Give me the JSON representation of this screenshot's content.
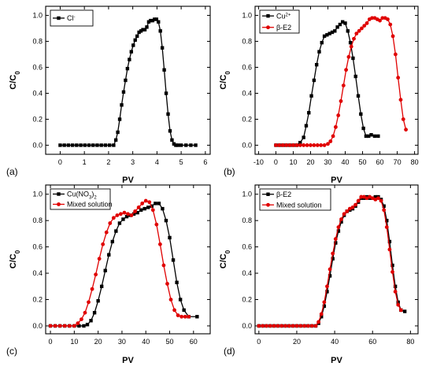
{
  "chart_data": [
    {
      "type": "line",
      "panel_label": "(a)",
      "xlabel": "PV",
      "ylabel": "C/C",
      "ylabel_sub": "0",
      "xlim": [
        -0.6,
        6.2
      ],
      "ylim": [
        -0.07,
        1.07
      ],
      "xticks": [
        0,
        1,
        2,
        3,
        4,
        5,
        6
      ],
      "yticks": [
        0.0,
        0.2,
        0.4,
        0.6,
        0.8,
        1.0
      ],
      "ytick_labels": [
        "0.0",
        "0.2",
        "0.4",
        "0.6",
        "0.8",
        "1.0"
      ],
      "legend_position": "top-left",
      "series": [
        {
          "name": "Cl",
          "name_sup": "-",
          "color": "#000000",
          "marker": "square",
          "x": [
            0,
            0.17,
            0.34,
            0.51,
            0.68,
            0.85,
            1.02,
            1.19,
            1.36,
            1.53,
            1.7,
            1.87,
            2.04,
            2.21,
            2.3,
            2.38,
            2.46,
            2.54,
            2.62,
            2.7,
            2.78,
            2.86,
            2.94,
            3.02,
            3.1,
            3.18,
            3.26,
            3.34,
            3.42,
            3.5,
            3.58,
            3.66,
            3.74,
            3.82,
            3.9,
            3.98,
            4.06,
            4.14,
            4.22,
            4.3,
            4.38,
            4.46,
            4.54,
            4.62,
            4.7,
            4.78,
            4.86,
            5.0,
            5.2,
            5.4,
            5.6
          ],
          "y": [
            0,
            0,
            0,
            0,
            0,
            0,
            0,
            0,
            0,
            0,
            0,
            0,
            0,
            0,
            0.04,
            0.1,
            0.2,
            0.31,
            0.41,
            0.5,
            0.59,
            0.66,
            0.72,
            0.77,
            0.81,
            0.84,
            0.87,
            0.88,
            0.89,
            0.89,
            0.91,
            0.95,
            0.96,
            0.96,
            0.97,
            0.97,
            0.95,
            0.88,
            0.75,
            0.58,
            0.4,
            0.24,
            0.11,
            0.04,
            0.01,
            0,
            0,
            0,
            0,
            0,
            0
          ]
        }
      ]
    },
    {
      "type": "line",
      "panel_label": "(b)",
      "xlabel": "PV",
      "ylabel": "C/C",
      "ylabel_sub": "0",
      "xlim": [
        -12,
        82
      ],
      "ylim": [
        -0.07,
        1.07
      ],
      "xticks": [
        -10,
        0,
        10,
        20,
        30,
        40,
        50,
        60,
        70,
        80
      ],
      "yticks": [
        0.0,
        0.2,
        0.4,
        0.6,
        0.8,
        1.0
      ],
      "ytick_labels": [
        "0.0",
        "0.2",
        "0.4",
        "0.6",
        "0.8",
        "1.0"
      ],
      "legend_position": "top-left",
      "series": [
        {
          "name": "Cu",
          "name_sup": "2+",
          "color": "#000000",
          "marker": "square",
          "x": [
            0,
            2,
            4,
            6,
            8,
            10,
            12,
            14,
            16,
            17.5,
            19,
            20.5,
            22,
            23.5,
            25,
            26.5,
            28,
            29.5,
            31,
            32.5,
            34,
            35.5,
            37,
            38.5,
            40,
            41.5,
            43,
            44.5,
            46,
            47.5,
            49,
            50.5,
            52,
            53.5,
            55,
            57,
            59
          ],
          "y": [
            0,
            0,
            0,
            0,
            0,
            0,
            0,
            0.02,
            0.06,
            0.15,
            0.25,
            0.38,
            0.5,
            0.62,
            0.72,
            0.79,
            0.84,
            0.85,
            0.86,
            0.87,
            0.88,
            0.91,
            0.93,
            0.95,
            0.94,
            0.88,
            0.79,
            0.67,
            0.53,
            0.38,
            0.24,
            0.13,
            0.07,
            0.07,
            0.08,
            0.07,
            0.07
          ]
        },
        {
          "name": "β-E2",
          "color": "#e00000",
          "marker": "circle",
          "x": [
            0,
            2,
            4,
            6,
            8,
            10,
            12,
            14,
            16,
            18,
            20,
            22,
            24,
            26,
            28,
            30,
            31.5,
            33,
            34.5,
            36,
            37.5,
            39,
            40.5,
            42,
            43.5,
            45,
            46.5,
            48,
            49.5,
            51,
            52.5,
            54,
            55.5,
            57,
            58.5,
            60,
            61.5,
            63,
            64.5,
            66,
            67.5,
            69,
            70.5,
            72,
            73.5,
            75
          ],
          "y": [
            0,
            0,
            0,
            0,
            0,
            0,
            0,
            0,
            0,
            0,
            0,
            0,
            0,
            0,
            0,
            0.01,
            0.03,
            0.07,
            0.14,
            0.23,
            0.34,
            0.46,
            0.58,
            0.68,
            0.76,
            0.82,
            0.86,
            0.88,
            0.9,
            0.92,
            0.94,
            0.97,
            0.98,
            0.98,
            0.97,
            0.96,
            0.98,
            0.98,
            0.97,
            0.93,
            0.84,
            0.7,
            0.52,
            0.35,
            0.2,
            0.12
          ]
        }
      ]
    },
    {
      "type": "line",
      "panel_label": "(c)",
      "xlabel": "PV",
      "ylabel": "C/C",
      "ylabel_sub": "0",
      "xlim": [
        -2,
        67
      ],
      "ylim": [
        -0.06,
        1.07
      ],
      "xticks": [
        0,
        10,
        20,
        30,
        40,
        50,
        60
      ],
      "yticks": [
        0.0,
        0.2,
        0.4,
        0.6,
        0.8,
        1.0
      ],
      "ytick_labels": [
        "0.0",
        "0.2",
        "0.4",
        "0.6",
        "0.8",
        "1.0"
      ],
      "legend_position": "top-left",
      "series": [
        {
          "name": "Cu(NO",
          "name_sub": "3",
          "name_end": ")",
          "name_end_sub": "2",
          "color": "#000000",
          "marker": "square",
          "x": [
            0,
            2,
            4,
            6,
            8,
            10,
            12,
            14,
            15.5,
            17,
            18.5,
            20,
            21.5,
            23,
            24.5,
            26,
            27.5,
            29,
            30.5,
            32,
            33.5,
            35,
            36.5,
            38,
            39.5,
            41,
            42.5,
            44,
            45.5,
            47,
            48.5,
            50,
            51.5,
            53,
            54.5,
            56,
            58,
            61.5
          ],
          "y": [
            0,
            0,
            0,
            0,
            0,
            0,
            0,
            0,
            0.01,
            0.04,
            0.1,
            0.19,
            0.3,
            0.42,
            0.54,
            0.64,
            0.72,
            0.78,
            0.81,
            0.83,
            0.84,
            0.85,
            0.86,
            0.88,
            0.89,
            0.9,
            0.91,
            0.93,
            0.93,
            0.89,
            0.8,
            0.67,
            0.5,
            0.33,
            0.2,
            0.12,
            0.07,
            0.07
          ]
        },
        {
          "name": "Mixed solution",
          "color": "#e00000",
          "marker": "circle",
          "x": [
            0,
            2,
            4,
            6,
            8,
            10,
            11.5,
            13,
            14.5,
            16,
            17.5,
            19,
            20.5,
            22,
            23.5,
            25,
            26.5,
            28,
            29.5,
            31,
            32.5,
            34,
            35.5,
            37,
            38.5,
            40,
            41.5,
            43,
            44.5,
            46,
            47.5,
            49,
            50.5,
            52,
            53.5,
            55,
            56.5,
            58
          ],
          "y": [
            0,
            0,
            0,
            0,
            0,
            0,
            0.02,
            0.05,
            0.1,
            0.18,
            0.28,
            0.39,
            0.51,
            0.62,
            0.71,
            0.78,
            0.82,
            0.84,
            0.85,
            0.86,
            0.85,
            0.84,
            0.87,
            0.9,
            0.93,
            0.95,
            0.94,
            0.88,
            0.77,
            0.62,
            0.46,
            0.32,
            0.2,
            0.12,
            0.08,
            0.07,
            0.07,
            0.07
          ]
        }
      ]
    },
    {
      "type": "line",
      "panel_label": "(d)",
      "xlabel": "PV",
      "ylabel": "C/C",
      "ylabel_sub": "0",
      "xlim": [
        -2,
        84
      ],
      "ylim": [
        -0.06,
        1.07
      ],
      "xticks": [
        0,
        20,
        40,
        60,
        80
      ],
      "yticks": [
        0.0,
        0.2,
        0.4,
        0.6,
        0.8,
        1.0
      ],
      "ytick_labels": [
        "0.0",
        "0.2",
        "0.4",
        "0.6",
        "0.8",
        "1.0"
      ],
      "legend_position": "top-left",
      "series": [
        {
          "name": "β-E2",
          "color": "#000000",
          "marker": "square",
          "x": [
            0,
            2,
            4,
            6,
            8,
            10,
            12,
            14,
            16,
            18,
            20,
            22,
            24,
            26,
            28,
            30,
            31.5,
            33,
            34.5,
            36,
            37.5,
            39,
            40.5,
            42,
            43.5,
            45,
            46.5,
            48,
            49.5,
            51,
            52.5,
            54,
            55.5,
            57,
            58.5,
            60,
            61.5,
            63,
            64.5,
            66,
            67.5,
            69,
            70.5,
            72,
            73.5,
            75,
            77
          ],
          "y": [
            0,
            0,
            0,
            0,
            0,
            0,
            0,
            0,
            0,
            0,
            0,
            0,
            0,
            0,
            0,
            0,
            0.02,
            0.07,
            0.15,
            0.26,
            0.38,
            0.51,
            0.63,
            0.72,
            0.79,
            0.84,
            0.87,
            0.88,
            0.89,
            0.91,
            0.94,
            0.97,
            0.97,
            0.98,
            0.97,
            0.97,
            0.98,
            0.98,
            0.96,
            0.91,
            0.8,
            0.64,
            0.46,
            0.3,
            0.18,
            0.12,
            0.11
          ]
        },
        {
          "name": "Mixed solution",
          "color": "#e00000",
          "marker": "circle",
          "x": [
            0,
            2,
            4,
            6,
            8,
            10,
            12,
            14,
            16,
            18,
            20,
            22,
            24,
            26,
            28,
            30,
            31.5,
            33,
            34.5,
            36,
            37.5,
            39,
            40.5,
            42,
            43.5,
            45,
            46.5,
            48,
            49.5,
            51,
            52.5,
            54,
            55.5,
            57,
            58.5,
            60,
            61.5,
            63,
            64.5,
            66,
            67.5,
            69,
            70.5,
            72,
            73.5,
            75
          ],
          "y": [
            0,
            0,
            0,
            0,
            0,
            0,
            0,
            0,
            0,
            0,
            0,
            0,
            0,
            0,
            0,
            0,
            0.03,
            0.09,
            0.18,
            0.3,
            0.43,
            0.55,
            0.66,
            0.75,
            0.81,
            0.85,
            0.87,
            0.89,
            0.9,
            0.92,
            0.95,
            0.98,
            0.98,
            0.97,
            0.98,
            0.97,
            0.96,
            0.97,
            0.95,
            0.88,
            0.75,
            0.58,
            0.41,
            0.26,
            0.16,
            0.12
          ]
        }
      ]
    }
  ]
}
